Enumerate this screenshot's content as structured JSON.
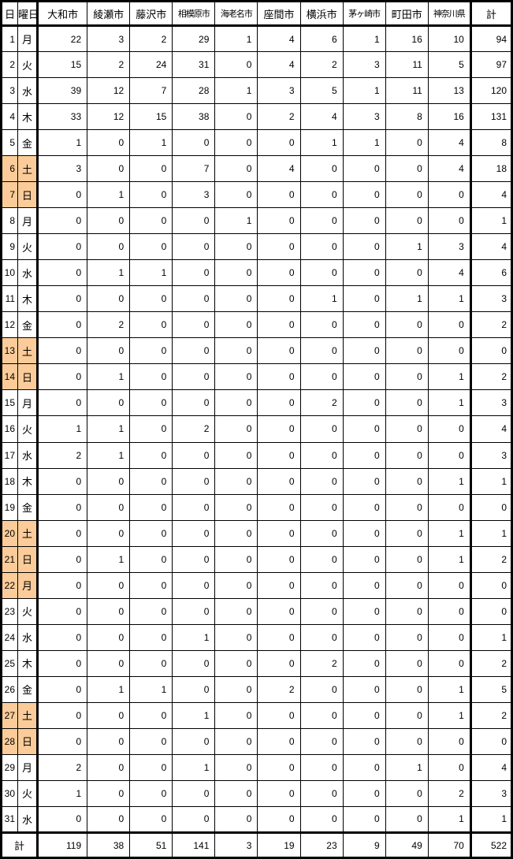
{
  "table": {
    "header": {
      "day": "日",
      "weekday": "曜日",
      "cities": [
        "大和市",
        "綾瀬市",
        "藤沢市",
        "相模原市",
        "海老名市",
        "座間市",
        "横浜市",
        "茅ヶ崎市",
        "町田市",
        "神奈川県"
      ],
      "total": "計"
    },
    "rows": [
      {
        "day": "1",
        "weekday": "月",
        "highlight": false,
        "values": [
          "22",
          "3",
          "2",
          "29",
          "1",
          "4",
          "6",
          "1",
          "16",
          "10"
        ],
        "total": "94"
      },
      {
        "day": "2",
        "weekday": "火",
        "highlight": false,
        "values": [
          "15",
          "2",
          "24",
          "31",
          "0",
          "4",
          "2",
          "3",
          "11",
          "5"
        ],
        "total": "97"
      },
      {
        "day": "3",
        "weekday": "水",
        "highlight": false,
        "values": [
          "39",
          "12",
          "7",
          "28",
          "1",
          "3",
          "5",
          "1",
          "11",
          "13"
        ],
        "total": "120"
      },
      {
        "day": "4",
        "weekday": "木",
        "highlight": false,
        "values": [
          "33",
          "12",
          "15",
          "38",
          "0",
          "2",
          "4",
          "3",
          "8",
          "16"
        ],
        "total": "131"
      },
      {
        "day": "5",
        "weekday": "金",
        "highlight": false,
        "values": [
          "1",
          "0",
          "1",
          "0",
          "0",
          "0",
          "1",
          "1",
          "0",
          "4"
        ],
        "total": "8"
      },
      {
        "day": "6",
        "weekday": "土",
        "highlight": true,
        "values": [
          "3",
          "0",
          "0",
          "7",
          "0",
          "4",
          "0",
          "0",
          "0",
          "4"
        ],
        "total": "18"
      },
      {
        "day": "7",
        "weekday": "日",
        "highlight": true,
        "values": [
          "0",
          "1",
          "0",
          "3",
          "0",
          "0",
          "0",
          "0",
          "0",
          "0"
        ],
        "total": "4"
      },
      {
        "day": "8",
        "weekday": "月",
        "highlight": false,
        "values": [
          "0",
          "0",
          "0",
          "0",
          "1",
          "0",
          "0",
          "0",
          "0",
          "0"
        ],
        "total": "1"
      },
      {
        "day": "9",
        "weekday": "火",
        "highlight": false,
        "values": [
          "0",
          "0",
          "0",
          "0",
          "0",
          "0",
          "0",
          "0",
          "1",
          "3"
        ],
        "total": "4"
      },
      {
        "day": "10",
        "weekday": "水",
        "highlight": false,
        "values": [
          "0",
          "1",
          "1",
          "0",
          "0",
          "0",
          "0",
          "0",
          "0",
          "4"
        ],
        "total": "6"
      },
      {
        "day": "11",
        "weekday": "木",
        "highlight": false,
        "values": [
          "0",
          "0",
          "0",
          "0",
          "0",
          "0",
          "1",
          "0",
          "1",
          "1"
        ],
        "total": "3"
      },
      {
        "day": "12",
        "weekday": "金",
        "highlight": false,
        "values": [
          "0",
          "2",
          "0",
          "0",
          "0",
          "0",
          "0",
          "0",
          "0",
          "0"
        ],
        "total": "2"
      },
      {
        "day": "13",
        "weekday": "土",
        "highlight": true,
        "values": [
          "0",
          "0",
          "0",
          "0",
          "0",
          "0",
          "0",
          "0",
          "0",
          "0"
        ],
        "total": "0"
      },
      {
        "day": "14",
        "weekday": "日",
        "highlight": true,
        "values": [
          "0",
          "1",
          "0",
          "0",
          "0",
          "0",
          "0",
          "0",
          "0",
          "1"
        ],
        "total": "2"
      },
      {
        "day": "15",
        "weekday": "月",
        "highlight": false,
        "values": [
          "0",
          "0",
          "0",
          "0",
          "0",
          "0",
          "2",
          "0",
          "0",
          "1"
        ],
        "total": "3"
      },
      {
        "day": "16",
        "weekday": "火",
        "highlight": false,
        "values": [
          "1",
          "1",
          "0",
          "2",
          "0",
          "0",
          "0",
          "0",
          "0",
          "0"
        ],
        "total": "4"
      },
      {
        "day": "17",
        "weekday": "水",
        "highlight": false,
        "values": [
          "2",
          "1",
          "0",
          "0",
          "0",
          "0",
          "0",
          "0",
          "0",
          "0"
        ],
        "total": "3"
      },
      {
        "day": "18",
        "weekday": "木",
        "highlight": false,
        "values": [
          "0",
          "0",
          "0",
          "0",
          "0",
          "0",
          "0",
          "0",
          "0",
          "1"
        ],
        "total": "1"
      },
      {
        "day": "19",
        "weekday": "金",
        "highlight": false,
        "values": [
          "0",
          "0",
          "0",
          "0",
          "0",
          "0",
          "0",
          "0",
          "0",
          "0"
        ],
        "total": "0"
      },
      {
        "day": "20",
        "weekday": "土",
        "highlight": true,
        "values": [
          "0",
          "0",
          "0",
          "0",
          "0",
          "0",
          "0",
          "0",
          "0",
          "1"
        ],
        "total": "1"
      },
      {
        "day": "21",
        "weekday": "日",
        "highlight": true,
        "values": [
          "0",
          "1",
          "0",
          "0",
          "0",
          "0",
          "0",
          "0",
          "0",
          "1"
        ],
        "total": "2"
      },
      {
        "day": "22",
        "weekday": "月",
        "highlight": true,
        "values": [
          "0",
          "0",
          "0",
          "0",
          "0",
          "0",
          "0",
          "0",
          "0",
          "0"
        ],
        "total": "0"
      },
      {
        "day": "23",
        "weekday": "火",
        "highlight": false,
        "values": [
          "0",
          "0",
          "0",
          "0",
          "0",
          "0",
          "0",
          "0",
          "0",
          "0"
        ],
        "total": "0"
      },
      {
        "day": "24",
        "weekday": "水",
        "highlight": false,
        "values": [
          "0",
          "0",
          "0",
          "1",
          "0",
          "0",
          "0",
          "0",
          "0",
          "0"
        ],
        "total": "1"
      },
      {
        "day": "25",
        "weekday": "木",
        "highlight": false,
        "values": [
          "0",
          "0",
          "0",
          "0",
          "0",
          "0",
          "2",
          "0",
          "0",
          "0"
        ],
        "total": "2"
      },
      {
        "day": "26",
        "weekday": "金",
        "highlight": false,
        "values": [
          "0",
          "1",
          "1",
          "0",
          "0",
          "2",
          "0",
          "0",
          "0",
          "1"
        ],
        "total": "5"
      },
      {
        "day": "27",
        "weekday": "土",
        "highlight": true,
        "values": [
          "0",
          "0",
          "0",
          "1",
          "0",
          "0",
          "0",
          "0",
          "0",
          "1"
        ],
        "total": "2"
      },
      {
        "day": "28",
        "weekday": "日",
        "highlight": true,
        "values": [
          "0",
          "0",
          "0",
          "0",
          "0",
          "0",
          "0",
          "0",
          "0",
          "0"
        ],
        "total": "0"
      },
      {
        "day": "29",
        "weekday": "月",
        "highlight": false,
        "values": [
          "2",
          "0",
          "0",
          "1",
          "0",
          "0",
          "0",
          "0",
          "1",
          "0"
        ],
        "total": "4"
      },
      {
        "day": "30",
        "weekday": "火",
        "highlight": false,
        "values": [
          "1",
          "0",
          "0",
          "0",
          "0",
          "0",
          "0",
          "0",
          "0",
          "2"
        ],
        "total": "3"
      },
      {
        "day": "31",
        "weekday": "水",
        "highlight": false,
        "values": [
          "0",
          "0",
          "0",
          "0",
          "0",
          "0",
          "0",
          "0",
          "0",
          "1"
        ],
        "total": "1"
      }
    ],
    "footer": {
      "label": "計",
      "values": [
        "119",
        "38",
        "51",
        "141",
        "3",
        "19",
        "23",
        "9",
        "49",
        "70"
      ],
      "total": "522"
    }
  },
  "colors": {
    "weekend_highlight": "#FBCC99",
    "border": "#000000",
    "background": "#FFFFFF"
  }
}
